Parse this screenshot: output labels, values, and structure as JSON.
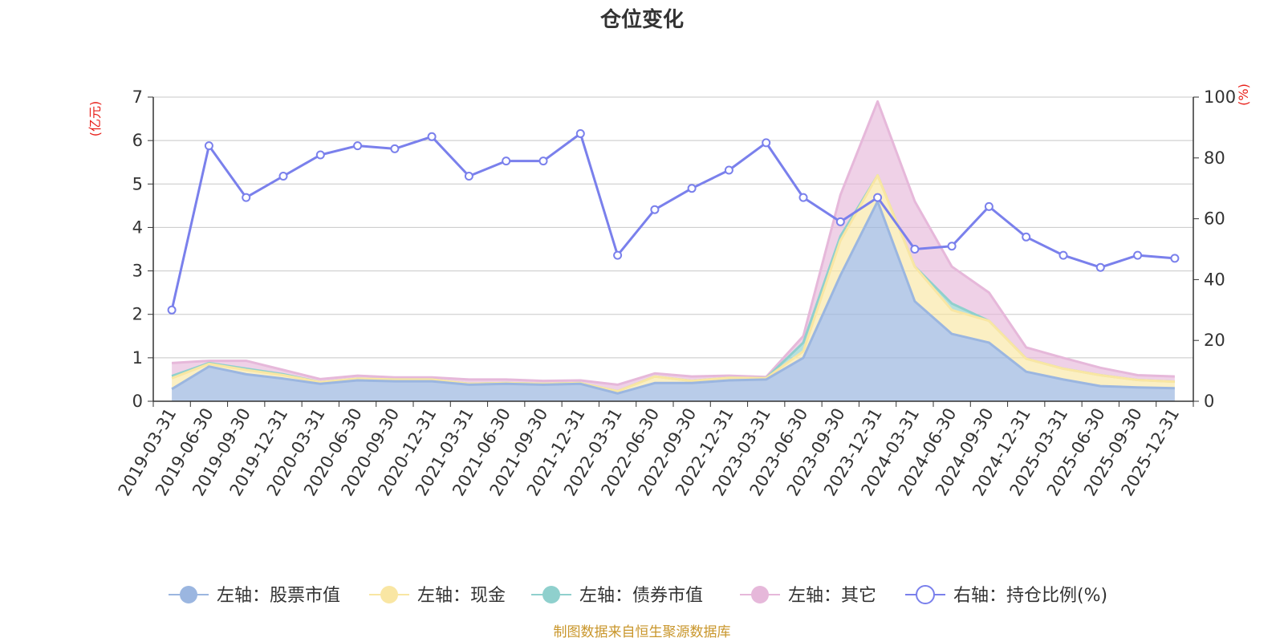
{
  "chart_data": {
    "type": "area",
    "title": "仓位变化",
    "left_axis_unit": "(亿元)",
    "right_axis_unit": "(%)",
    "left_ylim": [
      0,
      7
    ],
    "left_ticks": [
      "0",
      "1",
      "2",
      "3",
      "4",
      "5",
      "6",
      "7"
    ],
    "right_ylim": [
      0,
      100
    ],
    "right_ticks": [
      "0",
      "20",
      "40",
      "60",
      "80",
      "100"
    ],
    "categories": [
      "2019-03-31",
      "2019-06-30",
      "2019-09-30",
      "2019-12-31",
      "2020-03-31",
      "2020-06-30",
      "2020-09-30",
      "2020-12-31",
      "2021-03-31",
      "2021-06-30",
      "2021-09-30",
      "2021-12-31",
      "2022-03-31",
      "2022-06-30",
      "2022-09-30",
      "2022-12-31",
      "2023-03-31",
      "2023-06-30",
      "2023-09-30",
      "2023-12-31",
      "2024-03-31",
      "2024-06-30",
      "2024-09-30",
      "2024-12-31",
      "2025-03-31",
      "2025-06-30",
      "2025-09-30",
      "2025-12-31"
    ],
    "stacked_series": [
      {
        "name": "左轴：股票市值",
        "values": [
          0.28,
          0.8,
          0.62,
          0.52,
          0.4,
          0.48,
          0.46,
          0.46,
          0.38,
          0.4,
          0.38,
          0.4,
          0.18,
          0.42,
          0.42,
          0.48,
          0.5,
          1.0,
          2.9,
          4.6,
          2.3,
          1.55,
          1.35,
          0.68,
          0.5,
          0.35,
          0.32,
          0.3
        ]
      },
      {
        "name": "左轴：现金",
        "values": [
          0.25,
          0.06,
          0.1,
          0.08,
          0.04,
          0.04,
          0.04,
          0.04,
          0.02,
          0.02,
          0.02,
          0.02,
          0.05,
          0.15,
          0.05,
          0.06,
          0.03,
          0.15,
          0.8,
          0.6,
          0.8,
          0.55,
          0.5,
          0.3,
          0.25,
          0.25,
          0.17,
          0.15
        ]
      },
      {
        "name": "左轴：债券市值",
        "values": [
          0.05,
          0.02,
          0.03,
          0.02,
          0.0,
          0.0,
          0.0,
          0.0,
          0.0,
          0.0,
          0.0,
          0.0,
          0.0,
          0.0,
          0.0,
          0.0,
          0.0,
          0.2,
          0.1,
          0.0,
          0.0,
          0.15,
          0.0,
          0.0,
          0.0,
          0.0,
          0.0,
          0.0
        ]
      },
      {
        "name": "左轴：其它",
        "values": [
          0.3,
          0.05,
          0.18,
          0.1,
          0.07,
          0.07,
          0.05,
          0.05,
          0.1,
          0.08,
          0.07,
          0.06,
          0.15,
          0.07,
          0.1,
          0.05,
          0.03,
          0.15,
          0.95,
          1.7,
          1.5,
          0.85,
          0.65,
          0.26,
          0.25,
          0.17,
          0.11,
          0.12
        ]
      }
    ],
    "line_series": {
      "name": "右轴：持仓比例(%)",
      "values": [
        30,
        84,
        67,
        74,
        81,
        84,
        83,
        87,
        74,
        79,
        79,
        88,
        48,
        63,
        70,
        76,
        85,
        67,
        59,
        67,
        50,
        51,
        64,
        54,
        48,
        44,
        48,
        47
      ]
    },
    "colors": {
      "stock": "#9bb6e0",
      "cash": "#f9e6a3",
      "bond": "#8fd0cd",
      "other": "#e6b8da",
      "ratio": "#7a80ec",
      "unit": "#e8201a",
      "source": "#c9962b"
    }
  },
  "legend": {
    "stock": "左轴：股票市值",
    "cash": "左轴：现金",
    "bond": "左轴：债券市值",
    "other": "左轴：其它",
    "ratio": "右轴：持仓比例(%)"
  },
  "source_note": "制图数据来自恒生聚源数据库"
}
